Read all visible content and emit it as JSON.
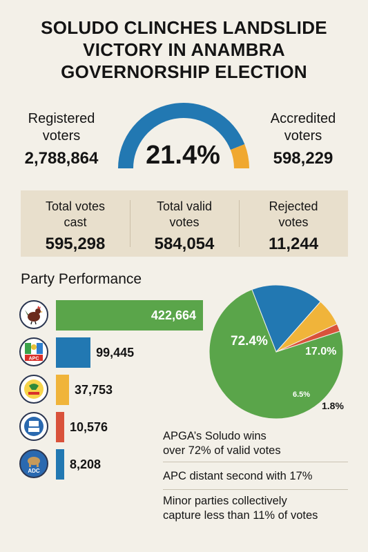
{
  "title_lines": [
    "SOLUDO CLINCHES LANDSLIDE",
    "VICTORY IN ANAMBRA",
    "GOVERNORSHIP ELECTION"
  ],
  "registered": {
    "label_l1": "Registered",
    "label_l2": "voters",
    "value": "2,788,864"
  },
  "accredited": {
    "label_l1": "Accredited",
    "label_l2": "voters",
    "value": "598,229"
  },
  "turnout": {
    "text": "21.4%",
    "fraction": 0.214,
    "color": "#2278b2",
    "accent": "#f0a830"
  },
  "totals": [
    {
      "l1": "Total votes",
      "l2": "cast",
      "value": "595,298"
    },
    {
      "l1": "Total valid",
      "l2": "votes",
      "value": "584,054"
    },
    {
      "l1": "Rejected",
      "l2": "votes",
      "value": "11,244"
    }
  ],
  "section_title": "Party Performance",
  "logos": [
    {
      "icon": "rooster-icon",
      "text": ""
    },
    {
      "icon": "apc-logo-icon",
      "text": "APC"
    },
    {
      "icon": "party-logo-icon",
      "text": ""
    },
    {
      "icon": "party-logo-icon",
      "text": ""
    },
    {
      "icon": "adc-logo-icon",
      "text": "ADC"
    }
  ],
  "chart_data": [
    {
      "type": "bar",
      "orientation": "horizontal",
      "values": [
        422664,
        99445,
        37753,
        10576,
        8208
      ],
      "value_labels": [
        "422,664",
        "99,445",
        "37,753",
        "10,576",
        "8,208"
      ],
      "colors": [
        "#5aa54a",
        "#2278b2",
        "#f0b43a",
        "#d9523b",
        "#2278b2"
      ]
    },
    {
      "type": "pie",
      "values": [
        72.4,
        17.0,
        6.5,
        1.8
      ],
      "labels": [
        "72.4%",
        "17.0%",
        "6.5%",
        "1.8%"
      ],
      "colors": [
        "#5aa54a",
        "#2278b2",
        "#f0b43a",
        "#d9523b"
      ]
    }
  ],
  "takeaways": [
    {
      "l1": "APGA’s Soludo wins",
      "l2": "over 72% of valid votes"
    },
    {
      "l1": "APC distant second with 17%",
      "l2": ""
    },
    {
      "l1": "Minor parties collectively",
      "l2": "capture less than 11% of votes"
    }
  ]
}
